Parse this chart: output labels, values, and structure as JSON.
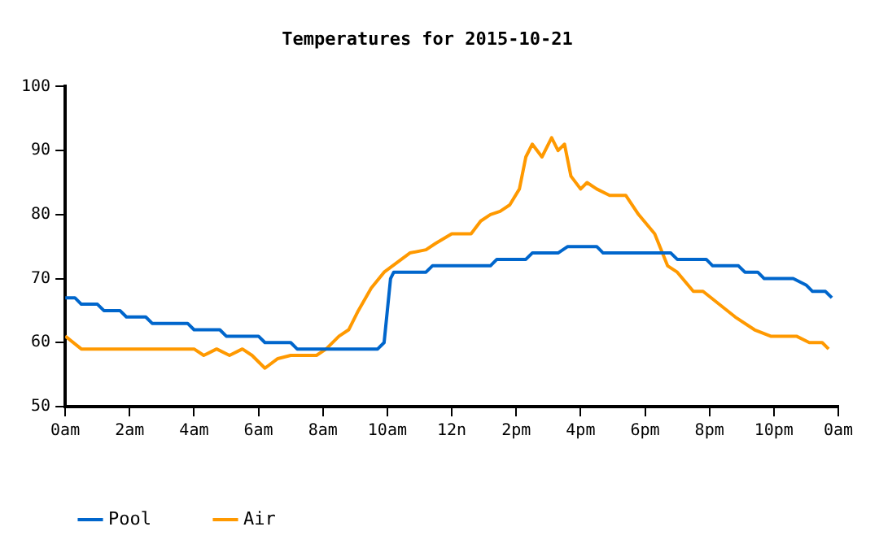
{
  "chart_data": {
    "type": "line",
    "title": "Temperatures for 2015-10-21",
    "xlim": [
      "2015-10-21T00:00",
      "2015-10-22T00:00"
    ],
    "xticks": [
      {
        "value": "2015-10-21T00:00",
        "label": "0am"
      },
      {
        "value": "2015-10-21T02:00",
        "label": "2am"
      },
      {
        "value": "2015-10-21T04:00",
        "label": "4am"
      },
      {
        "value": "2015-10-21T06:00",
        "label": "6am"
      },
      {
        "value": "2015-10-21T08:00",
        "label": "8am"
      },
      {
        "value": "2015-10-21T10:00",
        "label": "10am"
      },
      {
        "value": "2015-10-21T12:00",
        "label": "12n"
      },
      {
        "value": "2015-10-21T14:00",
        "label": "2pm"
      },
      {
        "value": "2015-10-21T16:00",
        "label": "4pm"
      },
      {
        "value": "2015-10-21T18:00",
        "label": "6pm"
      },
      {
        "value": "2015-10-21T20:00",
        "label": "8pm"
      },
      {
        "value": "2015-10-21T22:00",
        "label": "10pm"
      },
      {
        "value": "2015-10-22T00:00",
        "label": "0am"
      }
    ],
    "ylim": [
      50,
      100
    ],
    "yticks": [
      50,
      60,
      70,
      80,
      90,
      100
    ],
    "grid": false,
    "legend": "bottom left",
    "marker": "none",
    "line_style": "solid",
    "series": [
      {
        "name": "Pool",
        "color": "#0066cc",
        "x": [
          "2015-10-21T00:00",
          "2015-10-21T00:18",
          "2015-10-21T00:30",
          "2015-10-21T01:00",
          "2015-10-21T01:12",
          "2015-10-21T01:42",
          "2015-10-21T01:54",
          "2015-10-21T02:30",
          "2015-10-21T02:42",
          "2015-10-21T03:48",
          "2015-10-21T04:00",
          "2015-10-21T04:48",
          "2015-10-21T05:00",
          "2015-10-21T06:00",
          "2015-10-21T06:12",
          "2015-10-21T07:00",
          "2015-10-21T07:12",
          "2015-10-21T09:42",
          "2015-10-21T09:54",
          "2015-10-21T10:06",
          "2015-10-21T10:12",
          "2015-10-21T11:12",
          "2015-10-21T11:24",
          "2015-10-21T13:12",
          "2015-10-21T13:24",
          "2015-10-21T14:18",
          "2015-10-21T14:30",
          "2015-10-21T15:18",
          "2015-10-21T15:36",
          "2015-10-21T16:30",
          "2015-10-21T16:42",
          "2015-10-21T18:48",
          "2015-10-21T19:00",
          "2015-10-21T19:54",
          "2015-10-21T20:06",
          "2015-10-21T20:54",
          "2015-10-21T21:06",
          "2015-10-21T21:30",
          "2015-10-21T21:42",
          "2015-10-21T22:36",
          "2015-10-21T22:48",
          "2015-10-21T23:00",
          "2015-10-21T23:12",
          "2015-10-21T23:36",
          "2015-10-21T23:48"
        ],
        "values": [
          67,
          67,
          66,
          66,
          65,
          65,
          64,
          64,
          63,
          63,
          62,
          62,
          61,
          61,
          60,
          60,
          59,
          59,
          60,
          70,
          71,
          71,
          72,
          72,
          73,
          73,
          74,
          74,
          75,
          75,
          74,
          74,
          73,
          73,
          72,
          72,
          71,
          71,
          70,
          70,
          69.5,
          69,
          68,
          68,
          67
        ]
      },
      {
        "name": "Air",
        "color": "#ff9900",
        "x": [
          "2015-10-21T00:00",
          "2015-10-21T00:30",
          "2015-10-21T04:00",
          "2015-10-21T04:18",
          "2015-10-21T04:42",
          "2015-10-21T05:06",
          "2015-10-21T05:30",
          "2015-10-21T05:48",
          "2015-10-21T06:12",
          "2015-10-21T06:36",
          "2015-10-21T07:00",
          "2015-10-21T07:48",
          "2015-10-21T08:06",
          "2015-10-21T08:30",
          "2015-10-21T08:48",
          "2015-10-21T09:06",
          "2015-10-21T09:30",
          "2015-10-21T09:54",
          "2015-10-21T10:18",
          "2015-10-21T10:42",
          "2015-10-21T11:12",
          "2015-10-21T11:30",
          "2015-10-21T12:00",
          "2015-10-21T12:36",
          "2015-10-21T12:54",
          "2015-10-21T13:12",
          "2015-10-21T13:30",
          "2015-10-21T13:48",
          "2015-10-21T14:06",
          "2015-10-21T14:18",
          "2015-10-21T14:30",
          "2015-10-21T14:48",
          "2015-10-21T15:06",
          "2015-10-21T15:18",
          "2015-10-21T15:30",
          "2015-10-21T15:42",
          "2015-10-21T16:00",
          "2015-10-21T16:12",
          "2015-10-21T16:30",
          "2015-10-21T16:54",
          "2015-10-21T17:24",
          "2015-10-21T17:48",
          "2015-10-21T18:18",
          "2015-10-21T18:42",
          "2015-10-21T19:00",
          "2015-10-21T19:30",
          "2015-10-21T19:48",
          "2015-10-21T20:18",
          "2015-10-21T20:48",
          "2015-10-21T21:24",
          "2015-10-21T21:54",
          "2015-10-21T22:42",
          "2015-10-21T23:06",
          "2015-10-21T23:30",
          "2015-10-21T23:42"
        ],
        "values": [
          61,
          59,
          59,
          58,
          59,
          58,
          59,
          58,
          56,
          57.5,
          58,
          58,
          59,
          61,
          62,
          65,
          68.5,
          71,
          72.5,
          74,
          74.5,
          75.5,
          77,
          77,
          79,
          80,
          80.5,
          81.5,
          84,
          89,
          91,
          89,
          92,
          90,
          91,
          86,
          84,
          85,
          84,
          83,
          83,
          80,
          77,
          72,
          71,
          68,
          68,
          66,
          64,
          62,
          61,
          61,
          60,
          60,
          59
        ]
      }
    ]
  }
}
